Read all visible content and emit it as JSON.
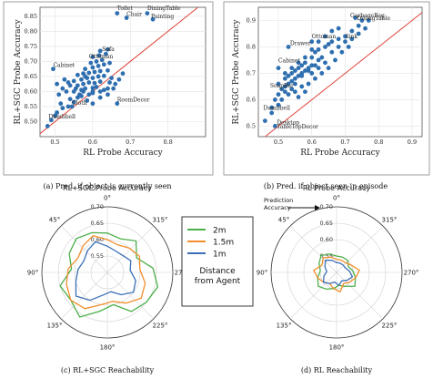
{
  "chart_data": [
    {
      "type": "scatter",
      "caption": "(a) Pred. if object is currently seen",
      "xlabel": "RL Probe Accuracy",
      "ylabel": "RL+SGC Probe Accuracy",
      "xlim": [
        0.46,
        0.9
      ],
      "ylim": [
        0.45,
        0.88
      ],
      "xticks": [
        "0.5",
        "0.6",
        "0.7",
        "0.8"
      ],
      "yticks": [
        "0.50",
        "0.55",
        "0.60",
        "0.65",
        "0.70",
        "0.75",
        "0.80",
        "0.85"
      ],
      "grid": true,
      "reference_line": "y = x",
      "colors": {
        "points": "#2f6fb0",
        "line": "#e0443a"
      },
      "annotations": [
        {
          "text": "Toilet",
          "x": 0.665,
          "y": 0.865
        },
        {
          "text": "DiningTable",
          "x": 0.745,
          "y": 0.865
        },
        {
          "text": "Chair",
          "x": 0.69,
          "y": 0.845
        },
        {
          "text": "Painting",
          "x": 0.755,
          "y": 0.838
        },
        {
          "text": "Sofa",
          "x": 0.625,
          "y": 0.728
        },
        {
          "text": "Ottoman",
          "x": 0.59,
          "y": 0.705
        },
        {
          "text": "Cabinet",
          "x": 0.495,
          "y": 0.675
        },
        {
          "text": "Cloth",
          "x": 0.545,
          "y": 0.55
        },
        {
          "text": "RoomDecor",
          "x": 0.665,
          "y": 0.56
        },
        {
          "text": "Dumbbell",
          "x": 0.483,
          "y": 0.505
        }
      ],
      "points": [
        [
          0.48,
          0.485
        ],
        [
          0.49,
          0.505
        ],
        [
          0.5,
          0.52
        ],
        [
          0.505,
          0.53
        ],
        [
          0.52,
          0.545
        ],
        [
          0.535,
          0.55
        ],
        [
          0.55,
          0.565
        ],
        [
          0.515,
          0.56
        ],
        [
          0.54,
          0.575
        ],
        [
          0.56,
          0.58
        ],
        [
          0.57,
          0.585
        ],
        [
          0.59,
          0.59
        ],
        [
          0.6,
          0.595
        ],
        [
          0.62,
          0.6
        ],
        [
          0.63,
          0.605
        ],
        [
          0.55,
          0.6
        ],
        [
          0.57,
          0.605
        ],
        [
          0.58,
          0.61
        ],
        [
          0.6,
          0.612
        ],
        [
          0.61,
          0.615
        ],
        [
          0.64,
          0.61
        ],
        [
          0.56,
          0.62
        ],
        [
          0.575,
          0.625
        ],
        [
          0.59,
          0.63
        ],
        [
          0.605,
          0.628
        ],
        [
          0.62,
          0.633
        ],
        [
          0.645,
          0.63
        ],
        [
          0.66,
          0.625
        ],
        [
          0.55,
          0.635
        ],
        [
          0.57,
          0.64
        ],
        [
          0.585,
          0.645
        ],
        [
          0.6,
          0.645
        ],
        [
          0.615,
          0.65
        ],
        [
          0.63,
          0.652
        ],
        [
          0.65,
          0.645
        ],
        [
          0.56,
          0.655
        ],
        [
          0.575,
          0.66
        ],
        [
          0.59,
          0.662
        ],
        [
          0.605,
          0.665
        ],
        [
          0.62,
          0.668
        ],
        [
          0.64,
          0.67
        ],
        [
          0.58,
          0.675
        ],
        [
          0.6,
          0.68
        ],
        [
          0.615,
          0.685
        ],
        [
          0.63,
          0.69
        ],
        [
          0.645,
          0.695
        ],
        [
          0.595,
          0.695
        ],
        [
          0.61,
          0.7
        ],
        [
          0.625,
          0.705
        ],
        [
          0.6,
          0.715
        ],
        [
          0.617,
          0.72
        ],
        [
          0.635,
          0.725
        ],
        [
          0.62,
          0.735
        ],
        [
          0.64,
          0.74
        ],
        [
          0.58,
          0.65
        ],
        [
          0.54,
          0.62
        ],
        [
          0.53,
          0.6
        ],
        [
          0.52,
          0.61
        ],
        [
          0.51,
          0.59
        ],
        [
          0.525,
          0.64
        ],
        [
          0.505,
          0.625
        ],
        [
          0.565,
          0.59
        ],
        [
          0.585,
          0.57
        ],
        [
          0.6,
          0.56
        ],
        [
          0.665,
          0.56
        ],
        [
          0.545,
          0.55
        ],
        [
          0.655,
          0.61
        ],
        [
          0.67,
          0.64
        ],
        [
          0.68,
          0.66
        ],
        [
          0.665,
          0.86
        ],
        [
          0.69,
          0.845
        ],
        [
          0.745,
          0.86
        ],
        [
          0.76,
          0.84
        ],
        [
          0.495,
          0.675
        ],
        [
          0.62,
          0.58
        ],
        [
          0.64,
          0.59
        ],
        [
          0.575,
          0.6
        ],
        [
          0.555,
          0.61
        ],
        [
          0.535,
          0.63
        ],
        [
          0.6,
          0.6
        ]
      ]
    },
    {
      "type": "scatter",
      "caption": "(b) Pred. if object seen in episode",
      "xlabel": "RL Probe Accuracy",
      "ylabel": "RL+SGC Probe Accuracy",
      "xlim": [
        0.44,
        0.93
      ],
      "ylim": [
        0.46,
        0.95
      ],
      "xticks": [
        "0.5",
        "0.6",
        "0.7",
        "0.8",
        "0.9"
      ],
      "yticks": [
        "0.5",
        "0.6",
        "0.7",
        "0.8",
        "0.9"
      ],
      "grid": true,
      "reference_line": "y = x",
      "colors": {
        "points": "#2f6fb0",
        "line": "#e0443a"
      },
      "annotations": [
        {
          "text": "GarbageBag",
          "x": 0.715,
          "y": 0.905
        },
        {
          "text": "DiningTable",
          "x": 0.735,
          "y": 0.895
        },
        {
          "text": "Sink",
          "x": 0.7,
          "y": 0.825
        },
        {
          "text": "Ottoman",
          "x": 0.6,
          "y": 0.825
        },
        {
          "text": "Drawer",
          "x": 0.535,
          "y": 0.8
        },
        {
          "text": "Cabinet",
          "x": 0.5,
          "y": 0.735
        },
        {
          "text": "SoapBar",
          "x": 0.475,
          "y": 0.64
        },
        {
          "text": "Dumbbell",
          "x": 0.455,
          "y": 0.555
        },
        {
          "text": "Desktop",
          "x": 0.495,
          "y": 0.5
        },
        {
          "text": "TableTopDecor",
          "x": 0.495,
          "y": 0.485
        }
      ],
      "points": [
        [
          0.46,
          0.52
        ],
        [
          0.48,
          0.55
        ],
        [
          0.49,
          0.6
        ],
        [
          0.5,
          0.62
        ],
        [
          0.51,
          0.64
        ],
        [
          0.52,
          0.65
        ],
        [
          0.53,
          0.66
        ],
        [
          0.54,
          0.67
        ],
        [
          0.55,
          0.68
        ],
        [
          0.56,
          0.69
        ],
        [
          0.57,
          0.7
        ],
        [
          0.58,
          0.71
        ],
        [
          0.59,
          0.72
        ],
        [
          0.6,
          0.73
        ],
        [
          0.62,
          0.75
        ],
        [
          0.52,
          0.68
        ],
        [
          0.53,
          0.69
        ],
        [
          0.54,
          0.7
        ],
        [
          0.55,
          0.71
        ],
        [
          0.56,
          0.72
        ],
        [
          0.57,
          0.73
        ],
        [
          0.58,
          0.74
        ],
        [
          0.6,
          0.76
        ],
        [
          0.61,
          0.78
        ],
        [
          0.62,
          0.79
        ],
        [
          0.64,
          0.8
        ],
        [
          0.65,
          0.81
        ],
        [
          0.66,
          0.82
        ],
        [
          0.68,
          0.83
        ],
        [
          0.7,
          0.84
        ],
        [
          0.72,
          0.86
        ],
        [
          0.74,
          0.88
        ],
        [
          0.75,
          0.9
        ],
        [
          0.73,
          0.91
        ],
        [
          0.77,
          0.9
        ],
        [
          0.5,
          0.66
        ],
        [
          0.52,
          0.7
        ],
        [
          0.54,
          0.72
        ],
        [
          0.56,
          0.74
        ],
        [
          0.58,
          0.76
        ],
        [
          0.6,
          0.79
        ],
        [
          0.62,
          0.82
        ],
        [
          0.64,
          0.84
        ],
        [
          0.66,
          0.86
        ],
        [
          0.68,
          0.87
        ],
        [
          0.51,
          0.6
        ],
        [
          0.53,
          0.62
        ],
        [
          0.55,
          0.63
        ],
        [
          0.57,
          0.65
        ],
        [
          0.59,
          0.66
        ],
        [
          0.61,
          0.68
        ],
        [
          0.63,
          0.7
        ],
        [
          0.65,
          0.72
        ],
        [
          0.67,
          0.75
        ],
        [
          0.69,
          0.78
        ],
        [
          0.71,
          0.8
        ],
        [
          0.5,
          0.72
        ],
        [
          0.53,
          0.8
        ],
        [
          0.6,
          0.82
        ],
        [
          0.7,
          0.82
        ],
        [
          0.49,
          0.5
        ],
        [
          0.48,
          0.57
        ],
        [
          0.56,
          0.61
        ],
        [
          0.58,
          0.63
        ],
        [
          0.6,
          0.7
        ],
        [
          0.62,
          0.72
        ],
        [
          0.64,
          0.74
        ],
        [
          0.54,
          0.64
        ],
        [
          0.55,
          0.66
        ],
        [
          0.57,
          0.69
        ],
        [
          0.59,
          0.71
        ],
        [
          0.61,
          0.73
        ],
        [
          0.63,
          0.76
        ],
        [
          0.66,
          0.78
        ],
        [
          0.68,
          0.8
        ],
        [
          0.72,
          0.83
        ],
        [
          0.74,
          0.85
        ],
        [
          0.76,
          0.87
        ],
        [
          0.52,
          0.63
        ],
        [
          0.5,
          0.58
        ]
      ]
    },
    {
      "type": "polar_line",
      "caption": "(c) RL+SGC Reachability",
      "title": "RL+SGC Probe Accuracy",
      "rlim": [
        0.5,
        0.7
      ],
      "rticks": [
        "0.55",
        "0.60",
        "0.65",
        "0.70"
      ],
      "angle_labels": [
        "0°",
        "45°",
        "90°",
        "135°",
        "180°",
        "225°",
        "270°",
        "315°"
      ],
      "angle_direction": "clockwise from top, 90° on the left",
      "series": [
        {
          "name": "2m",
          "color": "#4daf4a",
          "values": [
            0.62,
            0.63,
            0.64,
            0.63,
            0.61,
            0.65,
            0.64,
            0.66,
            0.62,
            0.6,
            0.64,
            0.65,
            0.66,
            0.64,
            0.6,
            0.63,
            0.61
          ]
        },
        {
          "name": "1.5m",
          "color": "#f28e2b",
          "values": [
            0.6,
            0.62,
            0.61,
            0.6,
            0.62,
            0.63,
            0.64,
            0.63,
            0.6,
            0.59,
            0.61,
            0.63,
            0.62,
            0.6,
            0.61,
            0.6,
            0.59
          ]
        },
        {
          "name": "1m",
          "color": "#3b6fb6",
          "values": [
            0.58,
            0.6,
            0.59,
            0.58,
            0.59,
            0.6,
            0.62,
            0.6,
            0.57,
            0.56,
            0.58,
            0.6,
            0.59,
            0.57,
            0.58,
            0.57,
            0.57
          ]
        }
      ]
    },
    {
      "type": "polar_line",
      "caption": "(d) RL Reachability",
      "title": "RL Probe Accuracy",
      "rlim": [
        0.5,
        0.7
      ],
      "rticks": [
        "0.55",
        "0.60",
        "0.65",
        "0.70"
      ],
      "angle_labels": [
        "0°",
        "45°",
        "90°",
        "135°",
        "180°",
        "225°",
        "270°",
        "315°"
      ],
      "annotation": "Prediction Accuracy",
      "series": [
        {
          "name": "2m",
          "color": "#4daf4a",
          "values": [
            0.55,
            0.56,
            0.57,
            0.56,
            0.55,
            0.56,
            0.57,
            0.56,
            0.55,
            0.54,
            0.55,
            0.57,
            0.56,
            0.55,
            0.54,
            0.55,
            0.55
          ]
        },
        {
          "name": "1.5m",
          "color": "#f28e2b",
          "values": [
            0.54,
            0.55,
            0.56,
            0.55,
            0.57,
            0.56,
            0.55,
            0.54,
            0.55,
            0.56,
            0.54,
            0.55,
            0.56,
            0.57,
            0.55,
            0.54,
            0.54
          ]
        },
        {
          "name": "1m",
          "color": "#3b6fb6",
          "values": [
            0.53,
            0.54,
            0.55,
            0.54,
            0.53,
            0.54,
            0.55,
            0.54,
            0.53,
            0.54,
            0.53,
            0.54,
            0.55,
            0.54,
            0.53,
            0.53,
            0.53
          ]
        }
      ]
    }
  ],
  "legend": {
    "entries": [
      {
        "label": "2m",
        "color": "#4daf4a"
      },
      {
        "label": "1.5m",
        "color": "#f28e2b"
      },
      {
        "label": "1m",
        "color": "#3b6fb6"
      }
    ],
    "title": "Distance from Agent"
  }
}
